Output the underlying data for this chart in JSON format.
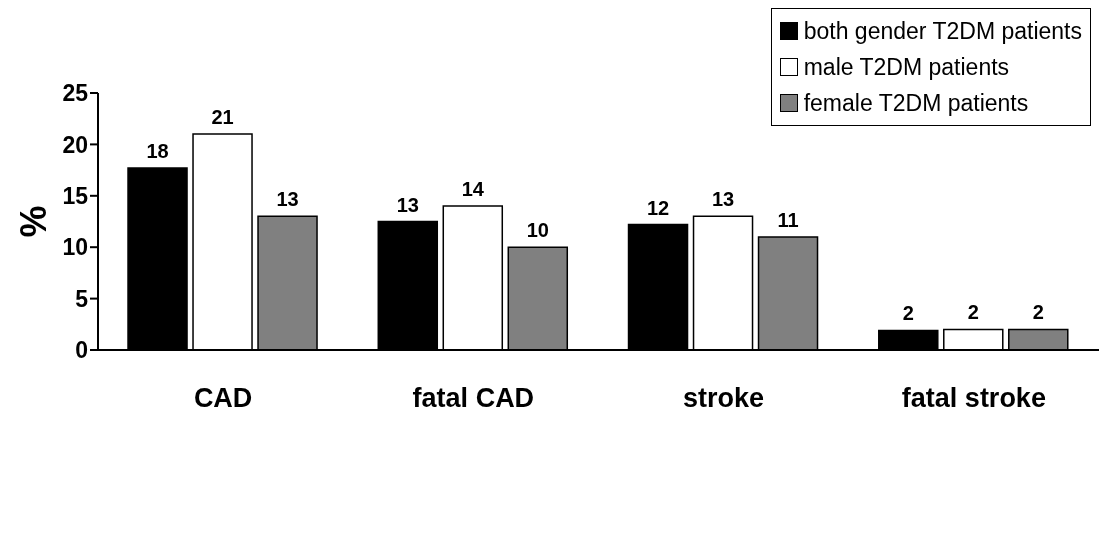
{
  "chart_data": {
    "type": "bar",
    "ylabel": "%",
    "categories": [
      "CAD",
      "fatal CAD",
      "stroke",
      "fatal stroke"
    ],
    "series": [
      {
        "name": "both gender T2DM patients",
        "color": "#000000",
        "values": [
          17.7,
          12.5,
          12.2,
          1.9
        ],
        "value_labels": [
          "18",
          "13",
          "12",
          "2"
        ]
      },
      {
        "name": "male T2DM patients",
        "color": "#ffffff",
        "values": [
          21,
          14,
          13,
          2
        ],
        "value_labels": [
          "21",
          "14",
          "13",
          "2"
        ]
      },
      {
        "name": "female T2DM patients",
        "color": "#808080",
        "values": [
          13,
          10,
          11,
          2
        ],
        "value_labels": [
          "13",
          "10",
          "11",
          "2"
        ]
      }
    ],
    "ylim": [
      0,
      25
    ],
    "yticks": [
      0,
      5,
      10,
      15,
      20,
      25
    ],
    "grid": false,
    "legend": "top right"
  }
}
